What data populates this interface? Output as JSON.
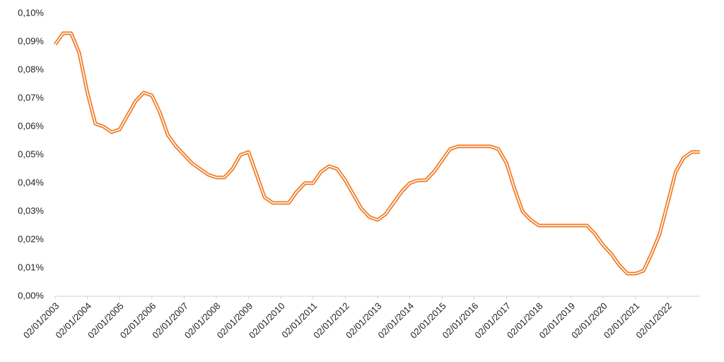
{
  "chart_data": {
    "type": "line",
    "x": [
      "02/01/2003",
      "02/04/2003",
      "02/07/2003",
      "02/10/2003",
      "02/01/2004",
      "02/04/2004",
      "02/07/2004",
      "02/10/2004",
      "02/01/2005",
      "02/04/2005",
      "02/07/2005",
      "02/10/2005",
      "02/01/2006",
      "02/04/2006",
      "02/07/2006",
      "02/10/2006",
      "02/01/2007",
      "02/04/2007",
      "02/07/2007",
      "02/10/2007",
      "02/01/2008",
      "02/04/2008",
      "02/07/2008",
      "02/10/2008",
      "02/01/2009",
      "02/04/2009",
      "02/07/2009",
      "02/10/2009",
      "02/01/2010",
      "02/04/2010",
      "02/07/2010",
      "02/10/2010",
      "02/01/2011",
      "02/04/2011",
      "02/07/2011",
      "02/10/2011",
      "02/01/2012",
      "02/04/2012",
      "02/07/2012",
      "02/10/2012",
      "02/01/2013",
      "02/04/2013",
      "02/07/2013",
      "02/10/2013",
      "02/01/2014",
      "02/04/2014",
      "02/07/2014",
      "02/10/2014",
      "02/01/2015",
      "02/04/2015",
      "02/07/2015",
      "02/10/2015",
      "02/01/2016",
      "02/04/2016",
      "02/07/2016",
      "02/10/2016",
      "02/01/2017",
      "02/04/2017",
      "02/07/2017",
      "02/10/2017",
      "02/01/2018",
      "02/04/2018",
      "02/07/2018",
      "02/10/2018",
      "02/01/2019",
      "02/04/2019",
      "02/07/2019",
      "02/10/2019",
      "02/01/2020",
      "02/04/2020",
      "02/07/2020",
      "02/10/2020",
      "02/01/2021",
      "02/04/2021",
      "02/07/2021",
      "02/10/2021",
      "02/01/2022",
      "02/04/2022",
      "02/07/2022",
      "02/10/2022",
      "02/01/2023"
    ],
    "series": [
      {
        "color": "#f07820",
        "values": [
          0.089,
          0.093,
          0.093,
          0.086,
          0.072,
          0.061,
          0.06,
          0.058,
          0.059,
          0.064,
          0.069,
          0.072,
          0.071,
          0.065,
          0.057,
          0.053,
          0.05,
          0.047,
          0.045,
          0.043,
          0.042,
          0.042,
          0.045,
          0.05,
          0.051,
          0.043,
          0.035,
          0.033,
          0.033,
          0.033,
          0.037,
          0.04,
          0.04,
          0.044,
          0.046,
          0.045,
          0.041,
          0.036,
          0.031,
          0.028,
          0.027,
          0.029,
          0.033,
          0.037,
          0.04,
          0.041,
          0.041,
          0.044,
          0.048,
          0.052,
          0.053,
          0.053,
          0.053,
          0.053,
          0.053,
          0.052,
          0.047,
          0.038,
          0.03,
          0.027,
          0.025,
          0.025,
          0.025,
          0.025,
          0.025,
          0.025,
          0.025,
          0.022,
          0.018,
          0.015,
          0.011,
          0.008,
          0.008,
          0.009,
          0.015,
          0.022,
          0.033,
          0.044,
          0.049,
          0.051,
          0.051
        ]
      }
    ],
    "xlim": [
      "02/01/2003",
      "02/01/2023"
    ],
    "xticks": [
      "02/01/2003",
      "02/01/2004",
      "02/01/2005",
      "02/01/2006",
      "02/01/2007",
      "02/01/2008",
      "02/01/2009",
      "02/01/2010",
      "02/01/2011",
      "02/01/2012",
      "02/01/2013",
      "02/01/2014",
      "02/01/2015",
      "02/01/2016",
      "02/01/2017",
      "02/01/2018",
      "02/01/2019",
      "02/01/2020",
      "02/01/2021",
      "02/01/2022"
    ],
    "ylim": [
      0,
      0.1
    ],
    "yticks": [
      {
        "value": 0,
        "label": "0,00%"
      },
      {
        "value": 0.01,
        "label": "0,01%"
      },
      {
        "value": 0.02,
        "label": "0,02%"
      },
      {
        "value": 0.03,
        "label": "0,03%"
      },
      {
        "value": 0.04,
        "label": "0,04%"
      },
      {
        "value": 0.05,
        "label": "0,05%"
      },
      {
        "value": 0.06,
        "label": "0,06%"
      },
      {
        "value": 0.07,
        "label": "0,07%"
      },
      {
        "value": 0.08,
        "label": "0,08%"
      },
      {
        "value": 0.09,
        "label": "0,09%"
      },
      {
        "value": 0.1,
        "label": "0,10%"
      }
    ],
    "grid": false
  }
}
